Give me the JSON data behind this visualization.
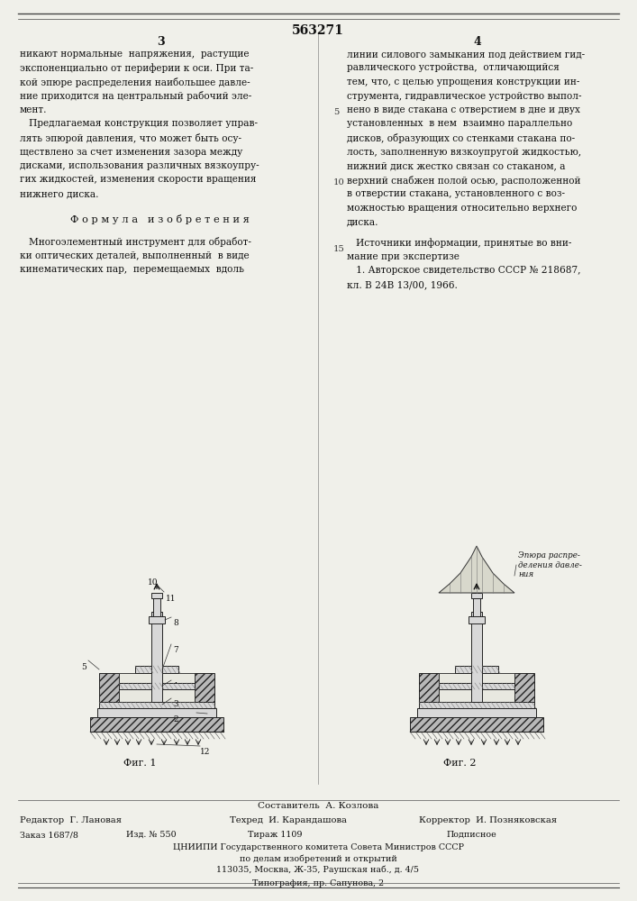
{
  "background_color": "#f0f0ea",
  "border_color": "#333333",
  "patent_number": "563271",
  "page_left": "3",
  "page_right": "4",
  "fig1_label": "Фиг. 1",
  "fig2_label": "Фиг. 2",
  "composer": "Составитель  А. Козлова",
  "editor": "Редактор  Г. Лановая",
  "techred": "Техред  И. Карандашова",
  "corrector": "Корректор  И. Позняковская",
  "order": "Заказ 1687/8",
  "izdanie": "Изд. № 550",
  "tirazh": "Тираж 1109",
  "podpisnoe": "Подписное",
  "tsnipi": "ЦНИИПИ Государственного комитета Совета Министров СССР",
  "tsnipi2": "по делам изобретений и открытий",
  "tsnipi3": "113035, Москва, Ж-35, Раушская наб., д. 4/5",
  "tipografia": "Типография, пр. Сапунова, 2",
  "left_col_lines": [
    "никают нормальные  напряжения,  растущие",
    "экспоненциально от периферии к оси. При та-",
    "кой эпюре распределения наибольшее давле-",
    "ние приходится на центральный рабочий эле-",
    "мент.",
    "   Предлагаемая конструкция позволяет управ-",
    "лять эпюрой давления, что может быть осу-",
    "ществлено за счет изменения зазора между",
    "дисками, использования различных вязкоупру-",
    "гих жидкостей, изменения скорости вращения",
    "нижнего диска."
  ],
  "formula_heading": "Ф о р м у л а   и з о б р е т е н и я",
  "formula_lines": [
    "   Многоэлементный инструмент для обработ-",
    "ки оптических деталей, выполненный  в виде",
    "кинематических пар,  перемещаемых  вдоль"
  ],
  "right_col_lines": [
    "линии силового замыкания под действием гид-",
    "равлического устройства,  отличающийся",
    "тем, что, с целью упрощения конструкции ин-",
    "струмента, гидравлическое устройство выпол-",
    "нено в виде стакана с отверстием в дне и двух",
    "установленных  в нем  взаимно параллельно",
    "дисков, образующих со стенками стакана по-",
    "лость, заполненную вязкоупругой жидкостью,",
    "нижний диск жестко связан со стаканом, а",
    "верхний снабжен полой осью, расположенной",
    "в отверстии стакана, установленного с воз-",
    "можностью вращения относительно верхнего",
    "диска."
  ],
  "sources_lines": [
    "   Источники информации, принятые во вни-",
    "мание при экспертизе",
    "   1. Авторское свидетельство СССР № 218687,",
    "кл. В 24В 13/00, 1966."
  ],
  "epure_label": "Эпюра распре-деления давле-ния"
}
